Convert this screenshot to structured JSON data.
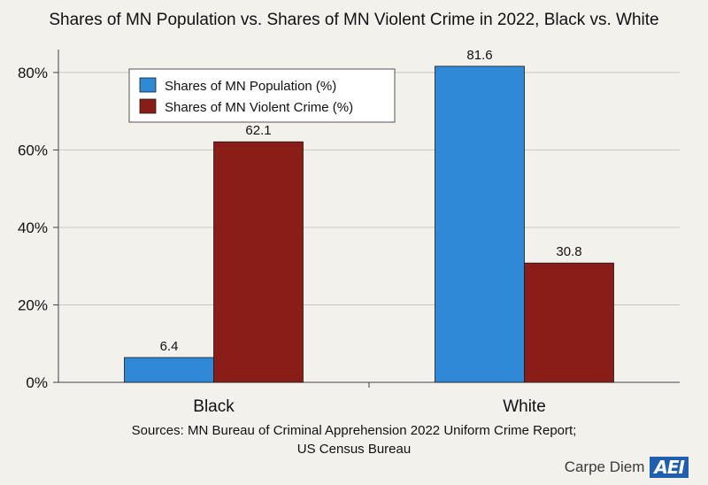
{
  "chart_data": {
    "type": "bar",
    "title": "Shares of MN Population vs. Shares of MN Violent Crime in 2022, Black vs. White",
    "categories": [
      "Black",
      "White"
    ],
    "series": [
      {
        "name": "Shares of MN Population (%)",
        "color": "#2f89d6",
        "values": [
          6.4,
          81.6
        ]
      },
      {
        "name": "Shares of MN Violent Crime (%)",
        "color": "#8b1d18",
        "values": [
          62.1,
          30.8
        ]
      }
    ],
    "yticks": [
      "0%",
      "20%",
      "40%",
      "60%",
      "80%"
    ],
    "ylim": [
      0,
      85
    ],
    "grid": true,
    "legend_position": "top-left",
    "xlabel": "",
    "ylabel": ""
  },
  "footer": {
    "source_line1": "Sources: MN Bureau of Criminal Apprehension 2022 Uniform Crime Report;",
    "source_line2": "US Census Bureau",
    "brand_text": "Carpe Diem",
    "brand_logo": "AEI"
  }
}
